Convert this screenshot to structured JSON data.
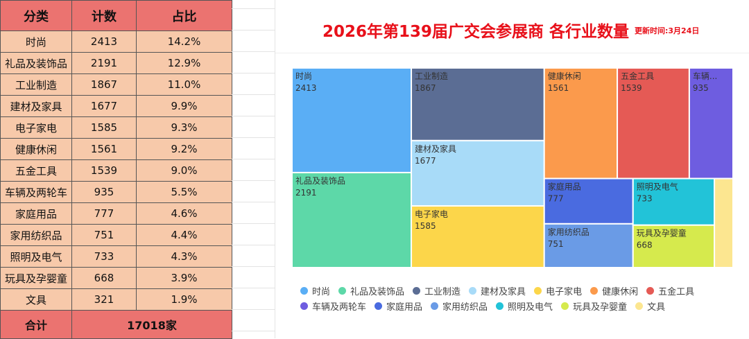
{
  "table": {
    "headers": [
      "分类",
      "计数",
      "占比"
    ],
    "rows": [
      {
        "category": "时尚",
        "count": "2413",
        "pct": "14.2%"
      },
      {
        "category": "礼品及装饰品",
        "count": "2191",
        "pct": "12.9%"
      },
      {
        "category": "工业制造",
        "count": "1867",
        "pct": "11.0%"
      },
      {
        "category": "建材及家具",
        "count": "1677",
        "pct": "9.9%"
      },
      {
        "category": "电子家电",
        "count": "1585",
        "pct": "9.3%"
      },
      {
        "category": "健康休闲",
        "count": "1561",
        "pct": "9.2%"
      },
      {
        "category": "五金工具",
        "count": "1539",
        "pct": "9.0%"
      },
      {
        "category": "车辆及两轮车",
        "count": "935",
        "pct": "5.5%"
      },
      {
        "category": "家庭用品",
        "count": "777",
        "pct": "4.6%"
      },
      {
        "category": "家用纺织品",
        "count": "751",
        "pct": "4.4%"
      },
      {
        "category": "照明及电气",
        "count": "733",
        "pct": "4.3%"
      },
      {
        "category": "玩具及孕婴童",
        "count": "668",
        "pct": "3.9%"
      },
      {
        "category": "文具",
        "count": "321",
        "pct": "1.9%"
      }
    ],
    "total_label": "合计",
    "total_value": "17018家"
  },
  "header": {
    "title": "2026年第139届广交会参展商 各行业数量",
    "update": "更新时间:3月24日"
  },
  "chart_data": {
    "type": "treemap",
    "categories": [
      "时尚",
      "礼品及装饰品",
      "工业制造",
      "建材及家具",
      "电子家电",
      "健康休闲",
      "五金工具",
      "车辆及两轮车",
      "家庭用品",
      "家用纺织品",
      "照明及电气",
      "玩具及孕婴童",
      "文具"
    ],
    "values": [
      2413,
      2191,
      1867,
      1677,
      1585,
      1561,
      1539,
      935,
      777,
      751,
      733,
      668,
      321
    ],
    "tile_labels": [
      "时尚",
      "礼品及装饰品",
      "工业制造",
      "建材及家具",
      "电子家电",
      "健康休闲",
      "五金工具",
      "车辆...",
      "家庭用品",
      "家用纺织品",
      "照明及电气",
      "玩具及孕婴童",
      ""
    ],
    "colors": [
      "#5aaef5",
      "#5dd8a8",
      "#5b6d94",
      "#a8dbf8",
      "#fcd64a",
      "#fb9a4c",
      "#e55a55",
      "#6e5de0",
      "#4a6be0",
      "#6a9be6",
      "#22c3d8",
      "#d6ea4d",
      "#fce690"
    ],
    "legend_position": "bottom"
  }
}
